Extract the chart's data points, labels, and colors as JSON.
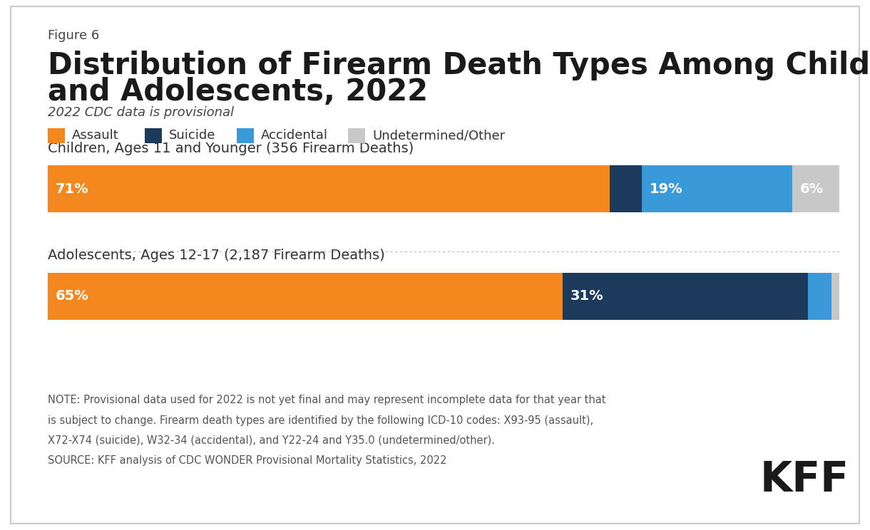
{
  "figure_label": "Figure 6",
  "title_line1": "Distribution of Firearm Death Types Among Children",
  "title_line2": "and Adolescents, 2022",
  "subtitle": "2022 CDC data is provisional",
  "legend_items": [
    "Assault",
    "Suicide",
    "Accidental",
    "Undetermined/Other"
  ],
  "legend_colors": [
    "#F5871F",
    "#1B3A5C",
    "#3A9AD9",
    "#C8C8C8"
  ],
  "bars": [
    {
      "label": "Children, Ages 11 and Younger (356 Firearm Deaths)",
      "values": [
        71,
        4,
        19,
        6
      ],
      "colors": [
        "#F5871F",
        "#1B3A5C",
        "#3A9AD9",
        "#C8C8C8"
      ],
      "text_labels": [
        "71%",
        "",
        "19%",
        "6%"
      ]
    },
    {
      "label": "Adolescents, Ages 12-17 (2,187 Firearm Deaths)",
      "values": [
        65,
        31,
        3,
        1
      ],
      "colors": [
        "#F5871F",
        "#1B3A5C",
        "#3A9AD9",
        "#C8C8C8"
      ],
      "text_labels": [
        "65%",
        "31%",
        "",
        ""
      ]
    }
  ],
  "note_line1": "NOTE: Provisional data used for 2022 is not yet final and may represent incomplete data for that year that",
  "note_line2": "is subject to change. Firearm death types are identified by the following ICD-10 codes: X93-95 (assault),",
  "note_line3": "X72-X74 (suicide), W32-34 (accidental), and Y22-24 and Y35.0 (undetermined/other).",
  "note_line4": "SOURCE: KFF analysis of CDC WONDER Provisional Mortality Statistics, 2022",
  "kff_logo_text": "KFF",
  "background_color": "#FFFFFF",
  "border_color": "#CCCCCC"
}
